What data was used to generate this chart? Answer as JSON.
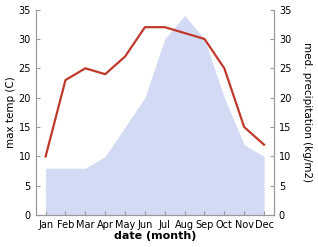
{
  "months": [
    "Jan",
    "Feb",
    "Mar",
    "Apr",
    "May",
    "Jun",
    "Jul",
    "Aug",
    "Sep",
    "Oct",
    "Nov",
    "Dec"
  ],
  "temperature": [
    10,
    23,
    25,
    24,
    27,
    32,
    32,
    31,
    30,
    25,
    15,
    12
  ],
  "precipitation": [
    8,
    8,
    8,
    10,
    15,
    20,
    30,
    34,
    30,
    20,
    12,
    10
  ],
  "temp_color": "#c0392b",
  "precip_fill_color": "#c5cef0",
  "precip_alpha": 0.75,
  "ylim_left": [
    0,
    35
  ],
  "ylim_right": [
    0,
    35
  ],
  "yticks": [
    0,
    5,
    10,
    15,
    20,
    25,
    30,
    35
  ],
  "ylabel_left": "max temp (C)",
  "ylabel_right": "med. precipitation (kg/m2)",
  "xlabel": "date (month)",
  "bg_color": "#ffffff",
  "axes_bg": "#ffffff",
  "spine_color": "#999999",
  "line_width": 1.6,
  "label_fontsize": 7.5,
  "tick_fontsize": 7,
  "xlabel_fontsize": 8
}
